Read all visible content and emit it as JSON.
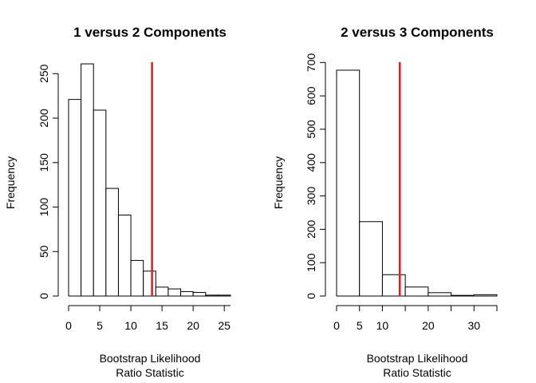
{
  "chart_data": [
    {
      "type": "bar",
      "title": "1 versus 2 Components",
      "xlabel": [
        "Bootstrap Likelihood",
        "Ratio Statistic"
      ],
      "ylabel": "Frequency",
      "bin_edges": [
        0,
        2,
        4,
        6,
        8,
        10,
        12,
        14,
        16,
        18,
        20,
        22,
        24,
        26
      ],
      "values": [
        221,
        261,
        209,
        121,
        91,
        40,
        28,
        10,
        8,
        5,
        4,
        1,
        1
      ],
      "xticks": [
        0,
        5,
        10,
        15,
        20,
        25
      ],
      "yticks": [
        0,
        50,
        100,
        150,
        200,
        250
      ],
      "xlim": [
        0,
        26
      ],
      "ylim": [
        0,
        270
      ],
      "reference_line": {
        "x": 13.4,
        "color": "#e41a1c"
      },
      "grid": false
    },
    {
      "type": "bar",
      "title": "2 versus 3 Components",
      "xlabel": [
        "Bootstrap Likelihood",
        "Ratio Statistic"
      ],
      "ylabel": "Frequency",
      "bin_edges": [
        0,
        5,
        10,
        15,
        20,
        25,
        30,
        35
      ],
      "values": [
        677,
        223,
        64,
        27,
        10,
        2,
        4
      ],
      "xticks": [
        0,
        5,
        10,
        20,
        30
      ],
      "yticks": [
        0,
        100,
        200,
        300,
        400,
        500,
        600,
        700
      ],
      "xlim": [
        0,
        35
      ],
      "ylim": [
        0,
        720
      ],
      "reference_line": {
        "x": 13.8,
        "color": "#e41a1c"
      },
      "grid": false
    }
  ]
}
